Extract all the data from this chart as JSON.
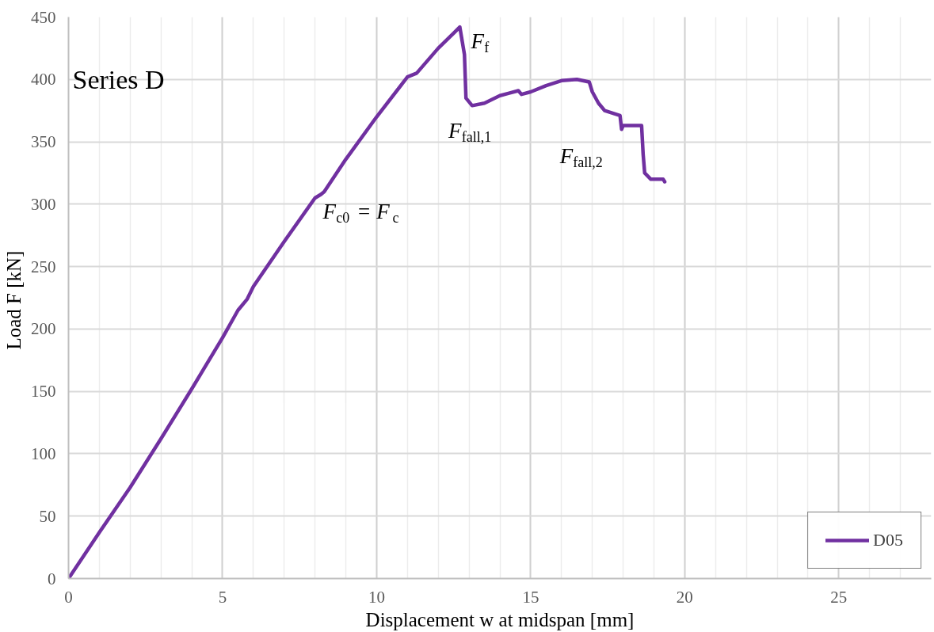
{
  "chart_data": {
    "type": "line",
    "xlabel": "Displacement w at midspan [mm]",
    "ylabel": "Load  F [kN]",
    "annotations": [
      "Series D",
      {
        "text": "F$_{f}$",
        "x": 12.7,
        "y": 442
      },
      {
        "text": "F$_{fall,1}$",
        "x": 13.1,
        "y": 379
      },
      {
        "text": "F$_{fall,2}$",
        "x": 17.95,
        "y": 360
      },
      {
        "text": "F$_{c0}$ = F$_{c}$",
        "x": 8.2,
        "y": 308
      }
    ],
    "series": [
      {
        "name": "D05",
        "color": "#7030a0",
        "x": [
          0,
          1,
          2,
          3,
          4,
          5,
          5.5,
          5.8,
          6,
          7,
          8,
          8.2,
          8.3,
          9,
          10,
          11,
          11.3,
          12,
          12.5,
          12.7,
          12.85,
          12.9,
          13.1,
          13.5,
          14,
          14.3,
          14.6,
          14.7,
          15,
          15.5,
          16,
          16.5,
          16.9,
          17.0,
          17.2,
          17.4,
          17.9,
          17.95,
          18.0,
          18.6,
          18.65,
          18.7,
          18.9,
          19.3,
          19.35
        ],
        "values": [
          0,
          37,
          73,
          112,
          152,
          193,
          215,
          224,
          234,
          270,
          305,
          308,
          310,
          336,
          370,
          402,
          405,
          425,
          437,
          442,
          420,
          385,
          379,
          381,
          387,
          389,
          391,
          388,
          390,
          395,
          399,
          400,
          398,
          390,
          381,
          375,
          371,
          360,
          363,
          363,
          340,
          325,
          320,
          320,
          318
        ]
      }
    ],
    "xlim": [
      0,
      28
    ],
    "xticks": [
      0,
      5,
      10,
      15,
      20,
      25
    ],
    "ylim": [
      0,
      450
    ],
    "yticks": [
      0,
      50,
      100,
      150,
      200,
      250,
      300,
      350,
      400,
      450
    ],
    "grid": true,
    "legend": "bottom right",
    "marker": "none",
    "line_style": "solid"
  }
}
